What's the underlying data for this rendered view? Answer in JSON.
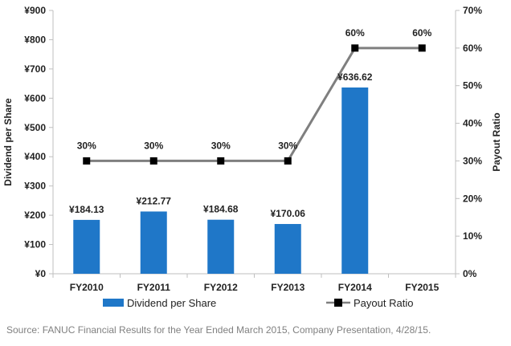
{
  "chart_data": {
    "type": "bar",
    "categories": [
      "FY2010",
      "FY2011",
      "FY2012",
      "FY2013",
      "FY2014",
      "FY2015"
    ],
    "series": [
      {
        "name": "Dividend per Share",
        "type": "bar",
        "axis": "left",
        "values": [
          184.13,
          212.77,
          184.68,
          170.06,
          636.62,
          null
        ],
        "labels": [
          "¥184.13",
          "¥212.77",
          "¥184.68",
          "¥170.06",
          "¥636.62",
          ""
        ],
        "color": "#1f77c8"
      },
      {
        "name": "Payout Ratio",
        "type": "line",
        "axis": "right",
        "values": [
          30,
          30,
          30,
          30,
          60,
          60
        ],
        "labels": [
          "30%",
          "30%",
          "30%",
          "30%",
          "60%",
          "60%"
        ],
        "color": "#7f7f7f",
        "marker_color": "#000000"
      }
    ],
    "ylabel": "Dividend per Share",
    "y2label": "Payout Ratio",
    "ylim": [
      0,
      900
    ],
    "yticks": [
      0,
      100,
      200,
      300,
      400,
      500,
      600,
      700,
      800,
      900
    ],
    "ytick_labels": [
      "¥0",
      "¥100",
      "¥200",
      "¥300",
      "¥400",
      "¥500",
      "¥600",
      "¥700",
      "¥800",
      "¥900"
    ],
    "y2lim": [
      0,
      70
    ],
    "y2ticks": [
      0,
      10,
      20,
      30,
      40,
      50,
      60,
      70
    ],
    "y2tick_labels": [
      "0%",
      "10%",
      "20%",
      "30%",
      "40%",
      "50%",
      "60%",
      "70%"
    ],
    "grid": false,
    "legend": "bottom"
  },
  "source": "Source: FANUC Financial Results for the Year Ended March 2015, Company Presentation, 4/28/15."
}
